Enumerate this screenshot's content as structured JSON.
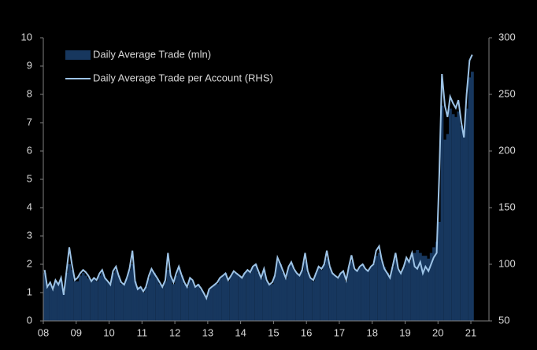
{
  "chart_data": {
    "type": "bar-line",
    "x": [
      2008,
      2008.08,
      2008.17,
      2008.25,
      2008.33,
      2008.42,
      2008.5,
      2008.58,
      2008.67,
      2008.75,
      2008.83,
      2008.92,
      2009,
      2009.08,
      2009.17,
      2009.25,
      2009.33,
      2009.42,
      2009.5,
      2009.58,
      2009.67,
      2009.75,
      2009.83,
      2009.92,
      2010,
      2010.08,
      2010.17,
      2010.25,
      2010.33,
      2010.42,
      2010.5,
      2010.58,
      2010.67,
      2010.75,
      2010.83,
      2010.92,
      2011,
      2011.08,
      2011.17,
      2011.25,
      2011.33,
      2011.42,
      2011.5,
      2011.58,
      2011.67,
      2011.75,
      2011.83,
      2011.92,
      2012,
      2012.08,
      2012.17,
      2012.25,
      2012.33,
      2012.42,
      2012.5,
      2012.58,
      2012.67,
      2012.75,
      2012.83,
      2012.92,
      2013,
      2013.08,
      2013.17,
      2013.25,
      2013.33,
      2013.42,
      2013.5,
      2013.58,
      2013.67,
      2013.75,
      2013.83,
      2013.92,
      2014,
      2014.08,
      2014.17,
      2014.25,
      2014.33,
      2014.42,
      2014.5,
      2014.58,
      2014.67,
      2014.75,
      2014.83,
      2014.92,
      2015,
      2015.08,
      2015.17,
      2015.25,
      2015.33,
      2015.42,
      2015.5,
      2015.58,
      2015.67,
      2015.75,
      2015.83,
      2015.92,
      2016,
      2016.08,
      2016.17,
      2016.25,
      2016.33,
      2016.42,
      2016.5,
      2016.58,
      2016.67,
      2016.75,
      2016.83,
      2016.92,
      2017,
      2017.08,
      2017.17,
      2017.25,
      2017.33,
      2017.42,
      2017.5,
      2017.58,
      2017.67,
      2017.75,
      2017.83,
      2017.92,
      2018,
      2018.08,
      2018.17,
      2018.25,
      2018.33,
      2018.42,
      2018.5,
      2018.58,
      2018.67,
      2018.75,
      2018.83,
      2018.92,
      2019,
      2019.08,
      2019.17,
      2019.25,
      2019.33,
      2019.42,
      2019.5,
      2019.58,
      2019.67,
      2019.75,
      2019.83,
      2019.92,
      2020,
      2020.08,
      2020.17,
      2020.25,
      2020.33,
      2020.42,
      2020.5,
      2020.58,
      2020.67,
      2020.75,
      2020.83,
      2020.92,
      2021
    ],
    "series": [
      {
        "name": "Daily Average Trade (mln)",
        "type": "bar",
        "color": "#17375e",
        "values": [
          1.7,
          1.2,
          1.3,
          1.1,
          1.4,
          1.3,
          1.4,
          1.0,
          1.7,
          2.0,
          1.8,
          1.4,
          1.4,
          1.6,
          1.7,
          1.6,
          1.5,
          1.4,
          1.5,
          1.4,
          1.6,
          1.7,
          1.5,
          1.4,
          1.3,
          1.7,
          1.8,
          1.6,
          1.3,
          1.3,
          1.5,
          1.8,
          2.0,
          1.4,
          1.2,
          1.2,
          1.0,
          1.2,
          1.5,
          1.8,
          1.7,
          1.5,
          1.3,
          1.2,
          1.4,
          1.8,
          1.6,
          1.3,
          1.6,
          1.9,
          1.6,
          1.3,
          1.2,
          1.5,
          1.4,
          1.2,
          1.3,
          1.1,
          1.0,
          0.8,
          1.1,
          1.2,
          1.3,
          1.3,
          1.5,
          1.6,
          1.7,
          1.4,
          1.6,
          1.7,
          1.7,
          1.6,
          1.5,
          1.7,
          1.8,
          1.7,
          1.9,
          2.0,
          1.7,
          1.5,
          1.8,
          1.4,
          1.3,
          1.3,
          1.6,
          2.1,
          2.0,
          1.7,
          1.5,
          1.9,
          2.0,
          1.8,
          1.7,
          1.6,
          1.8,
          2.1,
          1.7,
          1.5,
          1.4,
          1.7,
          1.9,
          1.8,
          2.0,
          2.2,
          1.9,
          1.7,
          1.6,
          1.5,
          1.7,
          1.7,
          1.4,
          1.9,
          2.1,
          1.8,
          1.8,
          1.9,
          2.0,
          1.8,
          1.8,
          1.9,
          2.0,
          2.3,
          2.4,
          2.1,
          1.9,
          1.7,
          1.6,
          1.9,
          2.2,
          1.8,
          1.7,
          1.9,
          2.2,
          2.1,
          2.4,
          2.4,
          2.5,
          2.4,
          2.3,
          2.3,
          2.2,
          2.4,
          2.6,
          2.8,
          3.5,
          7.6,
          6.4,
          6.6,
          7.5,
          7.3,
          7.2,
          7.4,
          6.9,
          6.7,
          7.5,
          8.6,
          8.8
        ]
      },
      {
        "name": "Daily Average Trade per Account (RHS)",
        "type": "line",
        "axis": "y2",
        "color": "#9dc3e6",
        "values": [
          95,
          80,
          84,
          78,
          86,
          82,
          88,
          73,
          95,
          115,
          100,
          86,
          88,
          92,
          95,
          93,
          90,
          85,
          88,
          86,
          92,
          95,
          88,
          85,
          82,
          94,
          98,
          90,
          84,
          82,
          88,
          96,
          112,
          85,
          78,
          80,
          76,
          80,
          90,
          96,
          92,
          88,
          84,
          80,
          86,
          110,
          90,
          84,
          92,
          98,
          90,
          84,
          80,
          88,
          86,
          80,
          82,
          79,
          75,
          70,
          78,
          80,
          82,
          84,
          88,
          90,
          92,
          86,
          90,
          94,
          92,
          90,
          88,
          92,
          95,
          93,
          98,
          100,
          94,
          88,
          96,
          86,
          82,
          84,
          90,
          106,
          100,
          94,
          88,
          98,
          102,
          96,
          92,
          90,
          95,
          110,
          94,
          88,
          86,
          92,
          98,
          96,
          100,
          112,
          98,
          92,
          90,
          88,
          92,
          94,
          86,
          98,
          108,
          96,
          94,
          98,
          100,
          96,
          94,
          98,
          100,
          112,
          116,
          104,
          96,
          92,
          88,
          98,
          110,
          96,
          92,
          98,
          106,
          102,
          110,
          98,
          96,
          102,
          92,
          98,
          94,
          100,
          106,
          110,
          180,
          268,
          240,
          230,
          248,
          242,
          238,
          245,
          225,
          212,
          250,
          280,
          285
        ]
      }
    ],
    "xlim": [
      2008,
      2021.55
    ],
    "xticks": [
      {
        "value": 2008,
        "label": "08"
      },
      {
        "value": 2009,
        "label": "09"
      },
      {
        "value": 2010,
        "label": "10"
      },
      {
        "value": 2011,
        "label": "11"
      },
      {
        "value": 2012,
        "label": "12"
      },
      {
        "value": 2013,
        "label": "13"
      },
      {
        "value": 2014,
        "label": "14"
      },
      {
        "value": 2015,
        "label": "15"
      },
      {
        "value": 2016,
        "label": "16"
      },
      {
        "value": 2017,
        "label": "17"
      },
      {
        "value": 2018,
        "label": "18"
      },
      {
        "value": 2019,
        "label": "19"
      },
      {
        "value": 2020,
        "label": "20"
      },
      {
        "value": 2021,
        "label": "21"
      }
    ],
    "ylim": [
      0,
      10
    ],
    "yticks": [
      0,
      1,
      2,
      3,
      4,
      5,
      6,
      7,
      8,
      9,
      10
    ],
    "y2lim": [
      50,
      300
    ],
    "y2ticks": [
      50,
      100,
      150,
      200,
      250,
      300
    ],
    "grid": false,
    "legend": "upper left"
  }
}
